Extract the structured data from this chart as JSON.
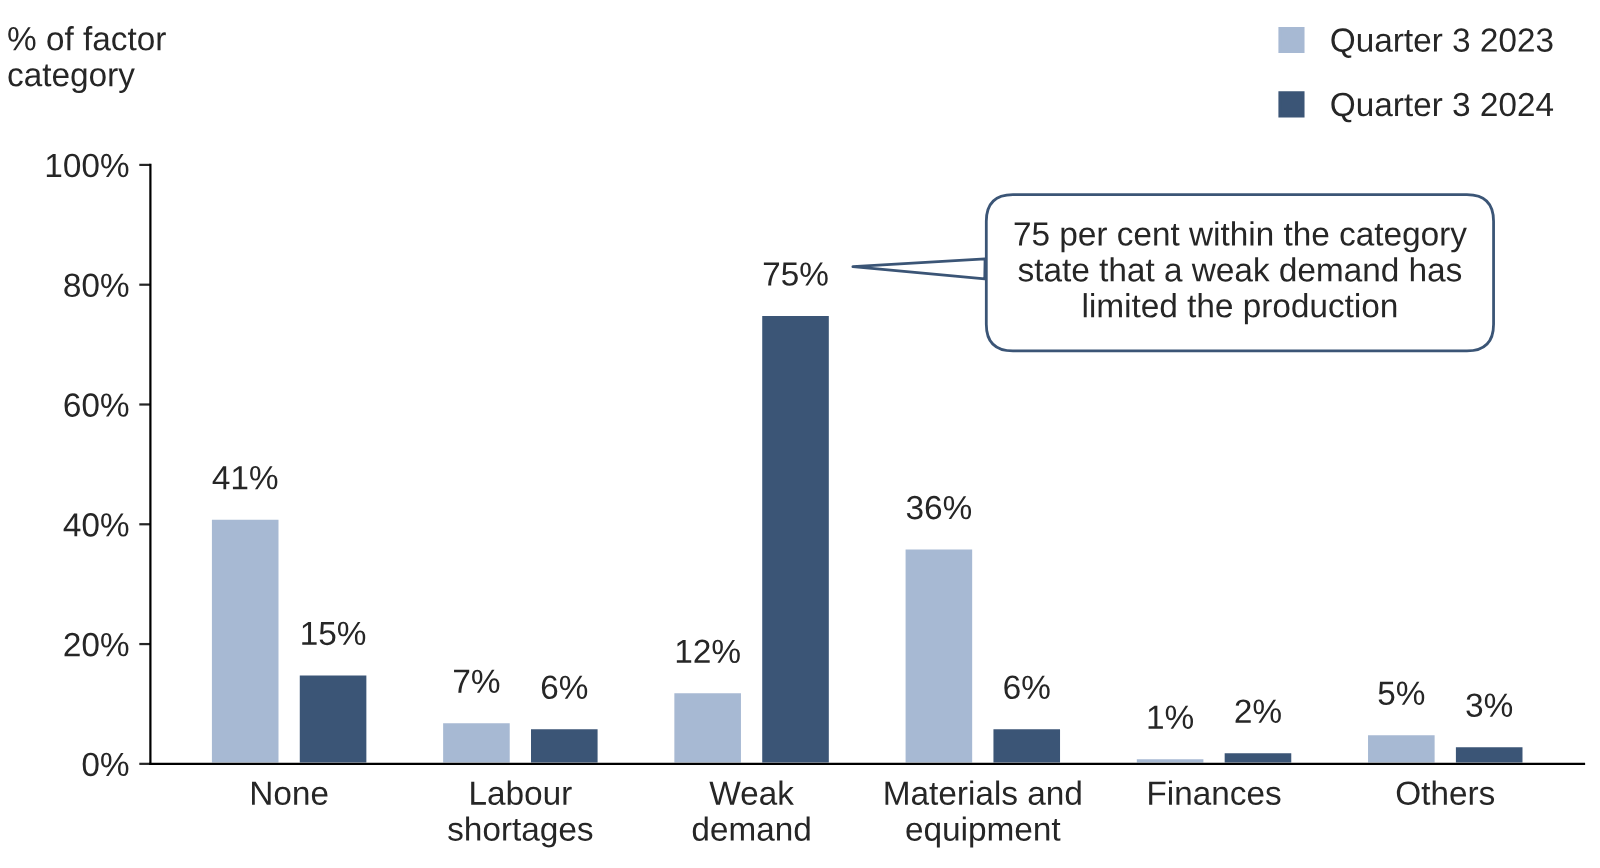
{
  "chart_data": {
    "type": "bar",
    "ylabel": "% of factor\ncategory",
    "categories": [
      "None",
      "Labour\nshortages",
      "Weak\ndemand",
      "Materials and\nequipment",
      "Finances",
      "Others"
    ],
    "series": [
      {
        "name": "Quarter 3 2023",
        "color": "#a7b9d3",
        "values": [
          41,
          7,
          12,
          36,
          1,
          5
        ],
        "value_labels": [
          "41%",
          "7%",
          "12%",
          "36%",
          "1%",
          "5%"
        ]
      },
      {
        "name": "Quarter 3 2024",
        "color": "#3b5576",
        "values": [
          15,
          6,
          75,
          6,
          2,
          3
        ],
        "value_labels": [
          "15%",
          "6%",
          "75%",
          "6%",
          "2%",
          "3%"
        ]
      }
    ],
    "ylim": [
      0,
      100
    ],
    "yticks": [
      {
        "value": 0,
        "label": "0%"
      },
      {
        "value": 20,
        "label": "20%"
      },
      {
        "value": 40,
        "label": "40%"
      },
      {
        "value": 60,
        "label": "60%"
      },
      {
        "value": 80,
        "label": "80%"
      },
      {
        "value": 100,
        "label": "100%"
      }
    ],
    "grid": false,
    "legend": "top right",
    "annotations": [
      "75 per cent within the category\nstate that a weak demand has\nlimited the production"
    ]
  }
}
